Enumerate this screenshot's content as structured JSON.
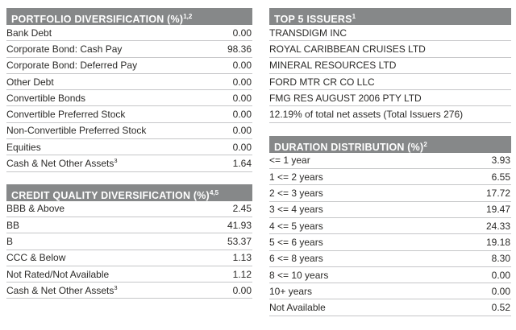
{
  "colors": {
    "header_bg": "#868889",
    "header_text": "#ffffff",
    "row_text": "#2b2a28",
    "divider": "#c5c6c8"
  },
  "left_column": {
    "portfolio": {
      "title": "PORTFOLIO DIVERSIFICATION (%)",
      "title_sup": "1,2",
      "rows": [
        {
          "label": "Bank Debt",
          "value": "0.00"
        },
        {
          "label": "Corporate Bond: Cash Pay",
          "value": "98.36"
        },
        {
          "label": "Corporate Bond: Deferred Pay",
          "value": "0.00"
        },
        {
          "label": "Other Debt",
          "value": "0.00"
        },
        {
          "label": "Convertible Bonds",
          "value": "0.00"
        },
        {
          "label": "Convertible Preferred Stock",
          "value": "0.00"
        },
        {
          "label": "Non-Convertible Preferred Stock",
          "value": "0.00"
        },
        {
          "label": "Equities",
          "value": "0.00"
        },
        {
          "label": "Cash & Net Other Assets",
          "sup": "3",
          "value": "1.64"
        }
      ]
    },
    "credit": {
      "title": "CREDIT QUALITY DIVERSIFICATION (%)",
      "title_sup": "4,5",
      "rows": [
        {
          "label": "BBB & Above",
          "value": "2.45"
        },
        {
          "label": "BB",
          "value": "41.93"
        },
        {
          "label": "B",
          "value": "53.37"
        },
        {
          "label": "CCC & Below",
          "value": "1.13"
        },
        {
          "label": "Not Rated/Not Available",
          "value": "1.12"
        },
        {
          "label": "Cash & Net Other Assets",
          "sup": "3",
          "value": "0.00"
        }
      ]
    }
  },
  "right_column": {
    "issuers": {
      "title": "TOP 5 ISSUERS",
      "title_sup": "1",
      "rows": [
        {
          "label": "TRANSDIGM INC"
        },
        {
          "label": "ROYAL CARIBBEAN CRUISES LTD"
        },
        {
          "label": "MINERAL RESOURCES LTD"
        },
        {
          "label": "FORD MTR CR CO LLC"
        },
        {
          "label": "FMG RES AUGUST 2006 PTY LTD"
        }
      ],
      "footnote": "12.19% of total net assets (Total Issuers 276)"
    },
    "duration": {
      "title": "DURATION DISTRIBUTION (%)",
      "title_sup": "2",
      "rows": [
        {
          "label": "<= 1 year",
          "value": "3.93"
        },
        {
          "label": "1 <= 2 years",
          "value": "6.55"
        },
        {
          "label": "2 <= 3 years",
          "value": "17.72"
        },
        {
          "label": "3 <= 4 years",
          "value": "19.47"
        },
        {
          "label": "4 <= 5 years",
          "value": "24.33"
        },
        {
          "label": "5 <= 6 years",
          "value": "19.18"
        },
        {
          "label": "6 <= 8 years",
          "value": "8.30"
        },
        {
          "label": "8 <= 10 years",
          "value": "0.00"
        },
        {
          "label": "10+ years",
          "value": "0.00"
        },
        {
          "label": "Not Available",
          "value": "0.52"
        }
      ]
    }
  }
}
